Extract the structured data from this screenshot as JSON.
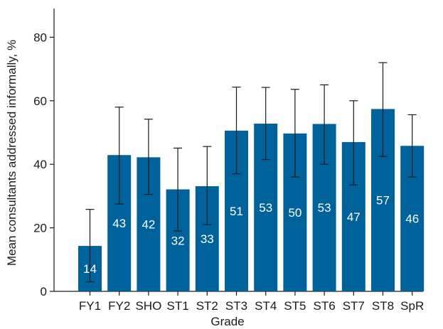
{
  "chart_data": {
    "type": "bar",
    "title": "",
    "xlabel": "Grade",
    "ylabel": "Mean consultants addressed informally, %",
    "ylim": [
      0,
      90
    ],
    "yticks": [
      0,
      20,
      40,
      60,
      80
    ],
    "grid": false,
    "legend": "none",
    "colors": {
      "bar": "#00629b",
      "bar_label": "#ffffff",
      "axis": "#1a1a1a"
    },
    "categories": [
      "FY1",
      "FY2",
      "SHO",
      "ST1",
      "ST2",
      "ST3",
      "ST4",
      "ST5",
      "ST6",
      "ST7",
      "ST8",
      "SpR"
    ],
    "series": [
      {
        "values": [
          14.3,
          42.9,
          42.2,
          32.1,
          33.1,
          50.6,
          52.8,
          49.7,
          52.7,
          47.0,
          57.4,
          45.8
        ],
        "data_labels": [
          "14",
          "43",
          "42",
          "32",
          "33",
          "51",
          "53",
          "50",
          "53",
          "47",
          "57",
          "46"
        ],
        "error_low": [
          3.0,
          27.5,
          30.5,
          19.0,
          21.0,
          37.0,
          41.5,
          36.0,
          40.0,
          33.5,
          42.5,
          36.0
        ],
        "error_high": [
          25.8,
          58.0,
          54.2,
          45.1,
          45.6,
          64.3,
          64.2,
          63.6,
          65.0,
          60.0,
          72.0,
          55.6
        ]
      }
    ]
  }
}
